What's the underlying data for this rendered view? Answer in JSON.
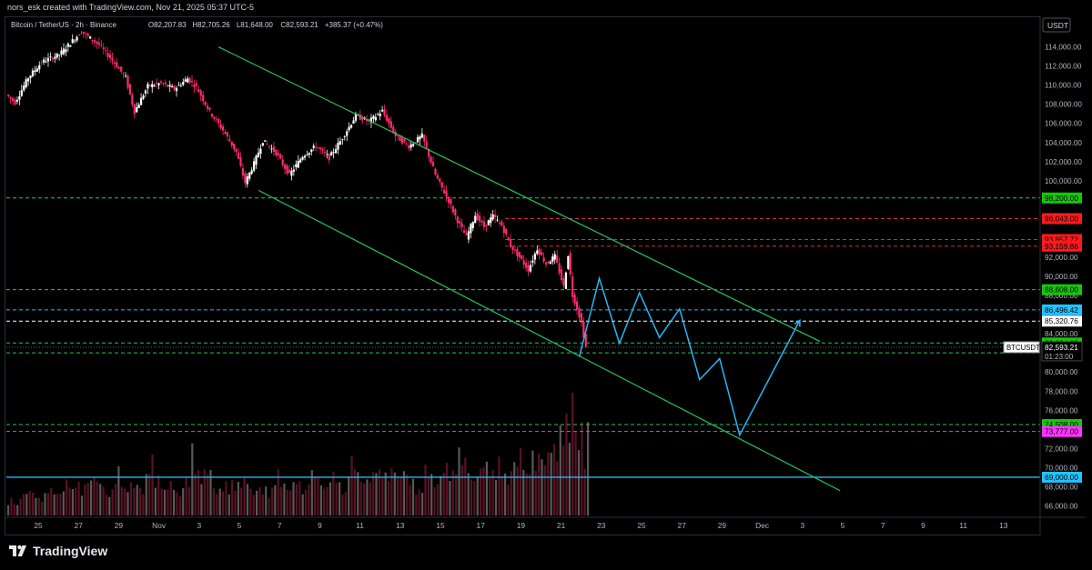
{
  "header": {
    "caption": "nors_esk created with TradingView.com, Nov 21, 2025 05:37 UTC-5"
  },
  "footer": {
    "brand": "TradingView",
    "logo_icon": "tradingview-logo-icon"
  },
  "chart_data": {
    "type": "candlestick",
    "symbol_line": {
      "title": "Bitcoin / TetherUS · 2h · Binance",
      "o": "O82,207.83",
      "h": "H82,705.26",
      "l": "L81,648.00",
      "c": "C82,593.21",
      "change": "+385.37 (+0.47%)"
    },
    "currency": "USDT",
    "y_axis": {
      "min": 65000,
      "max": 117000,
      "ticks": [
        "114,000.00",
        "112,000.00",
        "110,000.00",
        "108,000.00",
        "106,000.00",
        "104,000.00",
        "102,000.00",
        "100,000.00",
        "92,000.00",
        "90,000.00",
        "88,000.00",
        "84,000.00",
        "80,000.00",
        "78,000.00",
        "76,000.00",
        "72,000.00",
        "70,000.00",
        "68,000.00",
        "66,000.00"
      ]
    },
    "x_axis": {
      "ticks": [
        "25",
        "27",
        "29",
        "Nov",
        "3",
        "5",
        "7",
        "9",
        "11",
        "13",
        "15",
        "17",
        "19",
        "21",
        "23",
        "25",
        "27",
        "29",
        "Dec",
        "3",
        "5",
        "7",
        "9",
        "11",
        "13"
      ]
    },
    "price_path": [
      [
        0,
        109000
      ],
      [
        2,
        108200
      ],
      [
        5,
        110800
      ],
      [
        8,
        112400
      ],
      [
        12,
        113200
      ],
      [
        17,
        115600
      ],
      [
        21,
        114200
      ],
      [
        24,
        112600
      ],
      [
        27,
        110800
      ],
      [
        29,
        107200
      ],
      [
        32,
        109900
      ],
      [
        35,
        110200
      ],
      [
        38,
        109600
      ],
      [
        41,
        110700
      ],
      [
        43,
        109800
      ],
      [
        46,
        107200
      ],
      [
        49,
        105300
      ],
      [
        52,
        103000
      ],
      [
        54,
        99800
      ],
      [
        56,
        101800
      ],
      [
        58,
        104200
      ],
      [
        61,
        102900
      ],
      [
        64,
        100600
      ],
      [
        67,
        102600
      ],
      [
        70,
        103600
      ],
      [
        73,
        102400
      ],
      [
        76,
        104500
      ],
      [
        79,
        106800
      ],
      [
        82,
        106200
      ],
      [
        85,
        107300
      ],
      [
        88,
        104700
      ],
      [
        91,
        103600
      ],
      [
        94,
        104700
      ],
      [
        97,
        100600
      ],
      [
        100,
        97900
      ],
      [
        102,
        95800
      ],
      [
        104,
        94100
      ],
      [
        106,
        96400
      ],
      [
        108,
        95200
      ],
      [
        110,
        96300
      ],
      [
        112,
        95300
      ],
      [
        114,
        93200
      ],
      [
        116,
        92000
      ],
      [
        118,
        90700
      ],
      [
        120,
        92900
      ],
      [
        122,
        91300
      ],
      [
        124,
        92100
      ],
      [
        126,
        88900
      ],
      [
        127,
        92300
      ],
      [
        128,
        88000
      ],
      [
        129,
        86700
      ],
      [
        130,
        85100
      ],
      [
        131,
        82600
      ]
    ],
    "volume_profile": [
      0.15,
      0.2,
      0.25,
      0.18,
      0.3,
      0.22,
      0.35,
      0.28,
      0.45,
      0.3,
      0.25,
      0.4,
      0.32,
      0.28,
      0.5,
      0.38,
      0.3,
      0.25,
      0.35,
      0.6,
      0.42,
      0.3,
      0.28,
      0.36,
      0.32,
      0.3,
      0.25,
      0.4,
      0.3,
      0.35,
      0.28,
      0.45,
      0.32,
      0.38,
      0.3,
      0.5,
      0.42,
      0.36,
      0.55,
      0.4,
      0.48,
      0.35,
      0.3,
      0.42,
      0.38,
      0.45,
      0.6,
      0.5,
      0.4,
      0.55,
      0.48,
      0.45,
      0.5,
      0.6,
      0.55,
      0.7,
      0.62,
      1.0,
      1.0,
      0.75
    ],
    "channel": {
      "upper": [
        [
          "2025-11-03",
          114000
        ],
        [
          "2025-12-03",
          83200
        ]
      ],
      "lower": [
        [
          "2025-11-05",
          99000
        ],
        [
          "2025-12-04",
          67600
        ]
      ]
    },
    "projection": [
      [
        "2025-11-21",
        81600
      ],
      [
        "2025-11-22",
        89800
      ],
      [
        "2025-11-23",
        83000
      ],
      [
        "2025-11-24",
        88300
      ],
      [
        "2025-11-25",
        83600
      ],
      [
        "2025-11-26",
        86600
      ],
      [
        "2025-11-27",
        79200
      ],
      [
        "2025-11-28",
        81400
      ],
      [
        "2025-11-29",
        73400
      ],
      [
        "2025-12-02",
        85400
      ]
    ],
    "levels": [
      {
        "price": 98200,
        "label": "98,200.00",
        "color": "#22c55e",
        "box": "#16c60c",
        "text": "#000",
        "style": "dashed"
      },
      {
        "price": 96043,
        "label": "96,043.00",
        "color": "#d32f2f",
        "box": "#ff1a1a",
        "text": "#000",
        "style": "dashed"
      },
      {
        "price": 93857.72,
        "label": "93,857.72",
        "color": "#d32f2f",
        "box": "#ff1a1a",
        "text": "#000",
        "style": "dashed"
      },
      {
        "price": 93159.86,
        "label": "93,159.86",
        "color": "#d32f2f",
        "box": "#ff1a1a",
        "text": "#000",
        "style": "dashed"
      },
      {
        "price": 88608,
        "label": "88,608.00",
        "color": "#22c55e",
        "box": "#16c60c",
        "text": "#000",
        "style": "dashed"
      },
      {
        "price": 86496.42,
        "label": "86,496.42",
        "color": "#29b6f6",
        "box": "#22c3ff",
        "text": "#000",
        "style": "dashed"
      },
      {
        "price": 85320.76,
        "label": "85,320.76",
        "color": "#ffffff",
        "box": "#ffffff",
        "text": "#000",
        "style": "dashed"
      },
      {
        "price": 83034.23,
        "label": "83,034.23",
        "color": "#22c55e",
        "box": "#16c60c",
        "text": "#000",
        "style": "dashed"
      },
      {
        "price": 82000,
        "label": "82,000.00",
        "color": "#22c55e",
        "box": "#16c60c",
        "text": "#000",
        "style": "dashed"
      },
      {
        "price": 74508,
        "label": "74,508.00",
        "color": "#22c55e",
        "box": "#16c60c",
        "text": "#000",
        "style": "dashed"
      },
      {
        "price": 73777,
        "label": "73,777.00",
        "color": "#e040fb",
        "box": "#ff33ff",
        "text": "#000",
        "style": "dashed"
      },
      {
        "price": 69000,
        "label": "69,000.00",
        "color": "#29b6f6",
        "box": "#22c3ff",
        "text": "#000",
        "style": "solid"
      }
    ],
    "last_price": {
      "price": 82593.21,
      "label": "82,593.21",
      "countdown": "01:23:00",
      "ticker": "BTCUSDT"
    },
    "colors": {
      "up": "#ffffff",
      "down": "#ff2b6a",
      "channel": "#22c55e",
      "projection": "#29b6f6",
      "grid": "#111"
    }
  }
}
